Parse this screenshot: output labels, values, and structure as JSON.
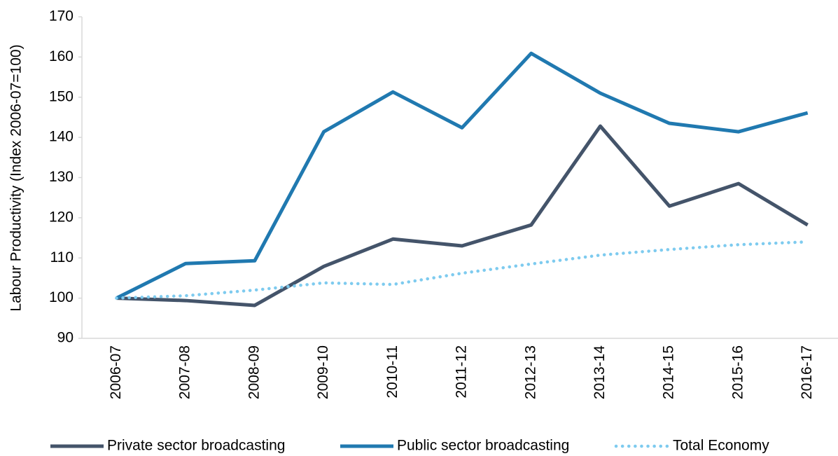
{
  "chart_data": {
    "type": "line",
    "ylabel": "Labour Productivity (Index 2006-07=100)",
    "categories": [
      "2006-07",
      "2007-08",
      "2008-09",
      "2009-10",
      "2010-11",
      "2011-12",
      "2012-13",
      "2013-14",
      "2014-15",
      "2015-16",
      "2016-17"
    ],
    "series": [
      {
        "name": "Private sector broadcasting",
        "color": "#44546a",
        "style": "solid",
        "values": [
          100,
          99.4,
          98.2,
          107.9,
          114.7,
          113,
          118.2,
          142.8,
          122.9,
          128.5,
          118.2
        ]
      },
      {
        "name": "Public sector broadcasting",
        "color": "#2079b0",
        "style": "solid",
        "values": [
          100,
          108.6,
          109.3,
          141.4,
          151.3,
          142.4,
          160.9,
          151,
          143.5,
          141.4,
          146.1
        ]
      },
      {
        "name": "Total Economy",
        "color": "#7ecbef",
        "style": "dotted",
        "values": [
          100,
          100.6,
          102,
          103.8,
          103.4,
          106.2,
          108.5,
          110.7,
          112.1,
          113.3,
          114
        ]
      }
    ],
    "ylim": [
      90,
      170
    ],
    "yticks": [
      90,
      100,
      110,
      120,
      130,
      140,
      150,
      160,
      170
    ],
    "grid": false,
    "legend": "bottom"
  }
}
